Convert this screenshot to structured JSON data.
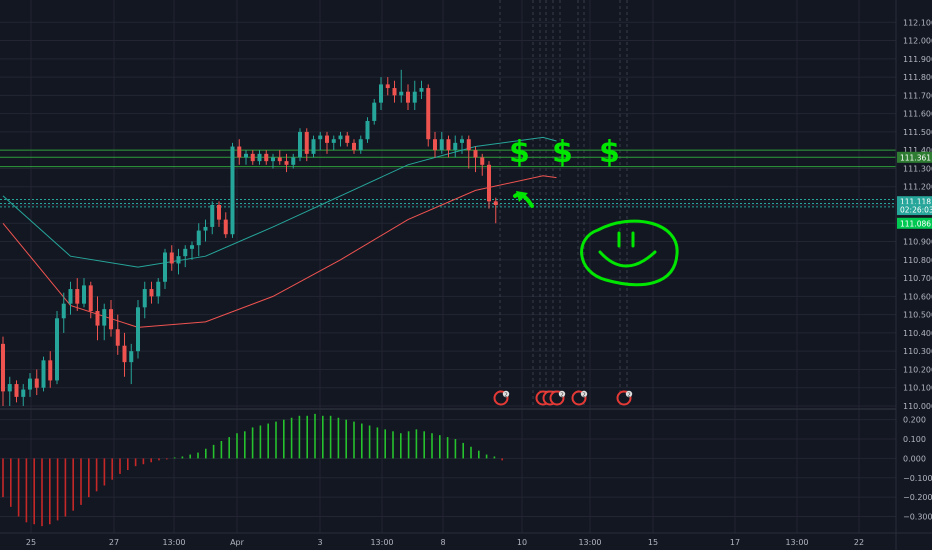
{
  "chart_data": {
    "type": "candlestick",
    "price_axis": {
      "ylim": [
        110.0,
        112.2
      ],
      "ticks": [
        "112.100",
        "112.000",
        "111.900",
        "111.800",
        "111.700",
        "111.600",
        "111.500",
        "111.400",
        "111.300",
        "111.200",
        "111.100",
        "111.000",
        "110.900",
        "110.800",
        "110.700",
        "110.600",
        "110.500",
        "110.400",
        "110.300",
        "110.200",
        "110.100",
        "110.000"
      ],
      "tick_values": [
        112.1,
        112.0,
        111.9,
        111.8,
        111.7,
        111.6,
        111.5,
        111.4,
        111.3,
        111.2,
        111.1,
        111.0,
        110.9,
        110.8,
        110.7,
        110.6,
        110.5,
        110.4,
        110.3,
        110.2,
        110.1,
        110.0
      ],
      "labels": [
        {
          "text": "111.361",
          "value": 111.361,
          "color": "#2e7d32"
        },
        {
          "text": "111.118",
          "value": 111.118,
          "color": "#26a69a"
        },
        {
          "text": "02:26:03",
          "value": 111.075,
          "color": "#26a69a"
        },
        {
          "text": "111.086",
          "value": 111.0,
          "color": "#00c853"
        }
      ]
    },
    "x_axis": {
      "labels": [
        "25",
        "27",
        "13:00",
        "Apr",
        "3",
        "13:00",
        "8",
        "10",
        "13:00",
        "15",
        "17",
        "13:00",
        "22"
      ]
    },
    "horizontal_lines": [
      111.4,
      111.361,
      111.31,
      111.13,
      111.108,
      111.09
    ],
    "candles": [
      [
        110.34,
        110.38,
        110.0,
        110.08
      ],
      [
        110.08,
        110.16,
        110.0,
        110.12
      ],
      [
        110.12,
        110.14,
        110.02,
        110.05
      ],
      [
        110.05,
        110.12,
        110.0,
        110.09
      ],
      [
        110.09,
        110.18,
        110.05,
        110.15
      ],
      [
        110.15,
        110.2,
        110.06,
        110.1
      ],
      [
        110.1,
        110.27,
        110.08,
        110.25
      ],
      [
        110.25,
        110.3,
        110.1,
        110.14
      ],
      [
        110.14,
        110.52,
        110.12,
        110.48
      ],
      [
        110.48,
        110.62,
        110.4,
        110.56
      ],
      [
        110.56,
        110.68,
        110.5,
        110.64
      ],
      [
        110.64,
        110.7,
        110.52,
        110.56
      ],
      [
        110.56,
        110.7,
        110.54,
        110.66
      ],
      [
        110.66,
        110.68,
        110.48,
        110.52
      ],
      [
        110.52,
        110.6,
        110.36,
        110.44
      ],
      [
        110.44,
        110.56,
        110.36,
        110.53
      ],
      [
        110.53,
        110.58,
        110.38,
        110.42
      ],
      [
        110.42,
        110.5,
        110.28,
        110.33
      ],
      [
        110.33,
        110.4,
        110.16,
        110.24
      ],
      [
        110.24,
        110.34,
        110.12,
        110.3
      ],
      [
        110.3,
        110.58,
        110.26,
        110.54
      ],
      [
        110.54,
        110.68,
        110.48,
        110.64
      ],
      [
        110.64,
        110.68,
        110.56,
        110.6
      ],
      [
        110.6,
        110.7,
        110.56,
        110.68
      ],
      [
        110.68,
        110.86,
        110.64,
        110.84
      ],
      [
        110.84,
        110.88,
        110.74,
        110.78
      ],
      [
        110.78,
        110.86,
        110.72,
        110.82
      ],
      [
        110.82,
        110.88,
        110.76,
        110.86
      ],
      [
        110.86,
        110.9,
        110.8,
        110.88
      ],
      [
        110.88,
        111.0,
        110.82,
        110.96
      ],
      [
        110.96,
        111.02,
        110.9,
        110.98
      ],
      [
        110.98,
        111.12,
        110.94,
        111.1
      ],
      [
        111.1,
        111.12,
        110.98,
        111.02
      ],
      [
        111.02,
        111.06,
        110.92,
        110.94
      ],
      [
        110.94,
        111.44,
        110.92,
        111.42
      ],
      [
        111.42,
        111.46,
        111.32,
        111.36
      ],
      [
        111.36,
        111.4,
        111.32,
        111.38
      ],
      [
        111.38,
        111.4,
        111.32,
        111.34
      ],
      [
        111.34,
        111.4,
        111.32,
        111.38
      ],
      [
        111.38,
        111.4,
        111.32,
        111.34
      ],
      [
        111.34,
        111.38,
        111.3,
        111.36
      ],
      [
        111.36,
        111.4,
        111.32,
        111.34
      ],
      [
        111.34,
        111.38,
        111.28,
        111.32
      ],
      [
        111.32,
        111.38,
        111.3,
        111.36
      ],
      [
        111.36,
        111.52,
        111.34,
        111.5
      ],
      [
        111.5,
        111.52,
        111.34,
        111.38
      ],
      [
        111.38,
        111.48,
        111.36,
        111.46
      ],
      [
        111.46,
        111.5,
        111.4,
        111.48
      ],
      [
        111.48,
        111.5,
        111.38,
        111.44
      ],
      [
        111.44,
        111.48,
        111.4,
        111.46
      ],
      [
        111.46,
        111.5,
        111.42,
        111.48
      ],
      [
        111.48,
        111.5,
        111.42,
        111.44
      ],
      [
        111.44,
        111.46,
        111.38,
        111.4
      ],
      [
        111.4,
        111.48,
        111.38,
        111.46
      ],
      [
        111.46,
        111.58,
        111.44,
        111.56
      ],
      [
        111.56,
        111.68,
        111.54,
        111.66
      ],
      [
        111.66,
        111.8,
        111.62,
        111.76
      ],
      [
        111.76,
        111.8,
        111.7,
        111.74
      ],
      [
        111.74,
        111.78,
        111.66,
        111.7
      ],
      [
        111.7,
        111.84,
        111.66,
        111.72
      ],
      [
        111.72,
        111.76,
        111.62,
        111.66
      ],
      [
        111.66,
        111.78,
        111.62,
        111.72
      ],
      [
        111.72,
        111.78,
        111.68,
        111.74
      ],
      [
        111.74,
        111.76,
        111.42,
        111.46
      ],
      [
        111.46,
        111.5,
        111.36,
        111.4
      ],
      [
        111.4,
        111.5,
        111.38,
        111.46
      ],
      [
        111.46,
        111.48,
        111.36,
        111.4
      ],
      [
        111.4,
        111.48,
        111.36,
        111.44
      ],
      [
        111.44,
        111.48,
        111.38,
        111.46
      ],
      [
        111.46,
        111.48,
        111.3,
        111.4
      ],
      [
        111.4,
        111.42,
        111.28,
        111.36
      ],
      [
        111.36,
        111.38,
        111.26,
        111.32
      ],
      [
        111.32,
        111.34,
        111.08,
        111.12
      ],
      [
        111.12,
        111.14,
        111.0,
        111.1
      ]
    ],
    "moving_averages": [
      {
        "color": "#26a69a",
        "values": [
          [
            0,
            111.15
          ],
          [
            10,
            110.82
          ],
          [
            20,
            110.76
          ],
          [
            30,
            110.82
          ],
          [
            40,
            110.98
          ],
          [
            50,
            111.15
          ],
          [
            60,
            111.32
          ],
          [
            70,
            111.42
          ],
          [
            80,
            111.47
          ],
          [
            82,
            111.45
          ]
        ]
      },
      {
        "color": "#ef5350",
        "values": [
          [
            0,
            111.0
          ],
          [
            10,
            110.55
          ],
          [
            20,
            110.43
          ],
          [
            30,
            110.46
          ],
          [
            40,
            110.6
          ],
          [
            50,
            110.8
          ],
          [
            60,
            111.02
          ],
          [
            70,
            111.18
          ],
          [
            80,
            111.26
          ],
          [
            82,
            111.25
          ]
        ]
      }
    ],
    "event_markers": [
      "2",
      "2",
      "2",
      "2",
      "2",
      "2"
    ],
    "annotations": {
      "symbols": [
        "$",
        "$",
        "$"
      ],
      "arrow": "up-arrow",
      "drawing": "smiley-face"
    },
    "oscillator": {
      "ylim": [
        -0.38,
        0.25
      ],
      "ticks": [
        "0.200",
        "0.100",
        "0.000",
        "−0.100",
        "−0.200",
        "−0.300"
      ],
      "tick_values": [
        0.2,
        0.1,
        0.0,
        -0.1,
        -0.2,
        -0.3
      ],
      "histogram": [
        -0.2,
        -0.25,
        -0.3,
        -0.33,
        -0.34,
        -0.35,
        -0.34,
        -0.32,
        -0.3,
        -0.27,
        -0.24,
        -0.2,
        -0.17,
        -0.14,
        -0.11,
        -0.08,
        -0.06,
        -0.04,
        -0.03,
        -0.02,
        -0.01,
        -0.005,
        0.005,
        0.01,
        0.02,
        0.03,
        0.05,
        0.07,
        0.09,
        0.11,
        0.13,
        0.14,
        0.16,
        0.17,
        0.18,
        0.19,
        0.2,
        0.21,
        0.22,
        0.22,
        0.23,
        0.22,
        0.22,
        0.21,
        0.2,
        0.19,
        0.18,
        0.17,
        0.16,
        0.15,
        0.14,
        0.13,
        0.14,
        0.15,
        0.14,
        0.13,
        0.12,
        0.11,
        0.1,
        0.08,
        0.06,
        0.04,
        0.02,
        0.01,
        -0.01
      ]
    },
    "colors": {
      "bull": "#26a69a",
      "bear": "#ef5350",
      "background": "#131722",
      "grid": "#232632",
      "axis_text": "#b2b5be",
      "annotation": "#00e600"
    }
  }
}
